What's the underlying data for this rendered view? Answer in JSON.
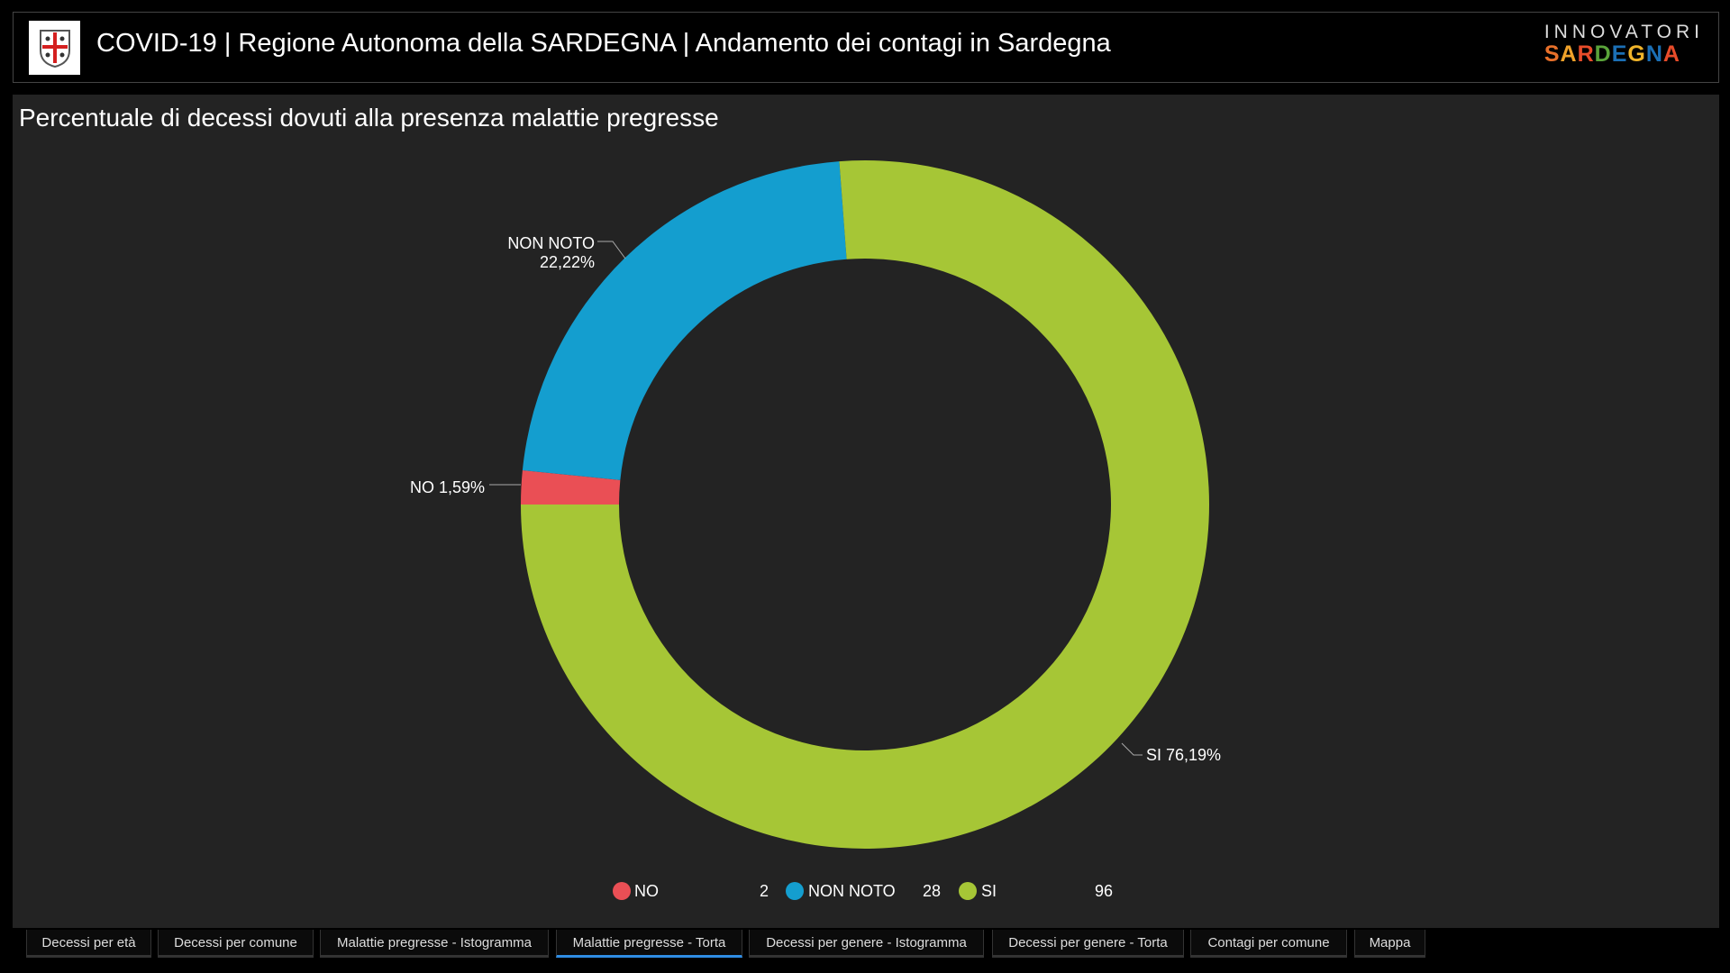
{
  "header": {
    "title": "COVID-19 | Regione Autonoma della SARDEGNA | Andamento dei contagi in Sardegna",
    "brand_top": "INNOVATORI",
    "brand_bottom": "SARDEGNA"
  },
  "chart_data": {
    "type": "pie",
    "title": "Percentuale di decessi dovuti alla presenza malattie pregresse",
    "donut": true,
    "categories": [
      "NO",
      "NON NOTO",
      "SI"
    ],
    "values": [
      2,
      28,
      96
    ],
    "percent_labels": [
      "NO 1,59%",
      "NON NOTO 22,22%",
      "SI 76,19%"
    ],
    "colors": [
      "#ea4f55",
      "#149ecf",
      "#a6c636"
    ],
    "legend": {
      "placement": "bottom",
      "items": [
        {
          "label": "NO",
          "value": "2"
        },
        {
          "label": "NON NOTO",
          "value": "28"
        },
        {
          "label": "SI",
          "value": "96"
        }
      ]
    }
  },
  "labels": {
    "no": "NO 1,59%",
    "non_noto_name": "NON NOTO",
    "non_noto_pct": "22,22%",
    "si": "SI 76,19%"
  },
  "tabs": [
    {
      "label": "Decessi per età"
    },
    {
      "label": "Decessi per comune"
    },
    {
      "label": "Malattie pregresse - Istogramma"
    },
    {
      "label": "Malattie pregresse - Torta",
      "active": true
    },
    {
      "label": "Decessi per genere - Istogramma"
    },
    {
      "label": "Decessi per genere - Torta"
    },
    {
      "label": "Contagi per comune"
    },
    {
      "label": "Mappa"
    }
  ]
}
